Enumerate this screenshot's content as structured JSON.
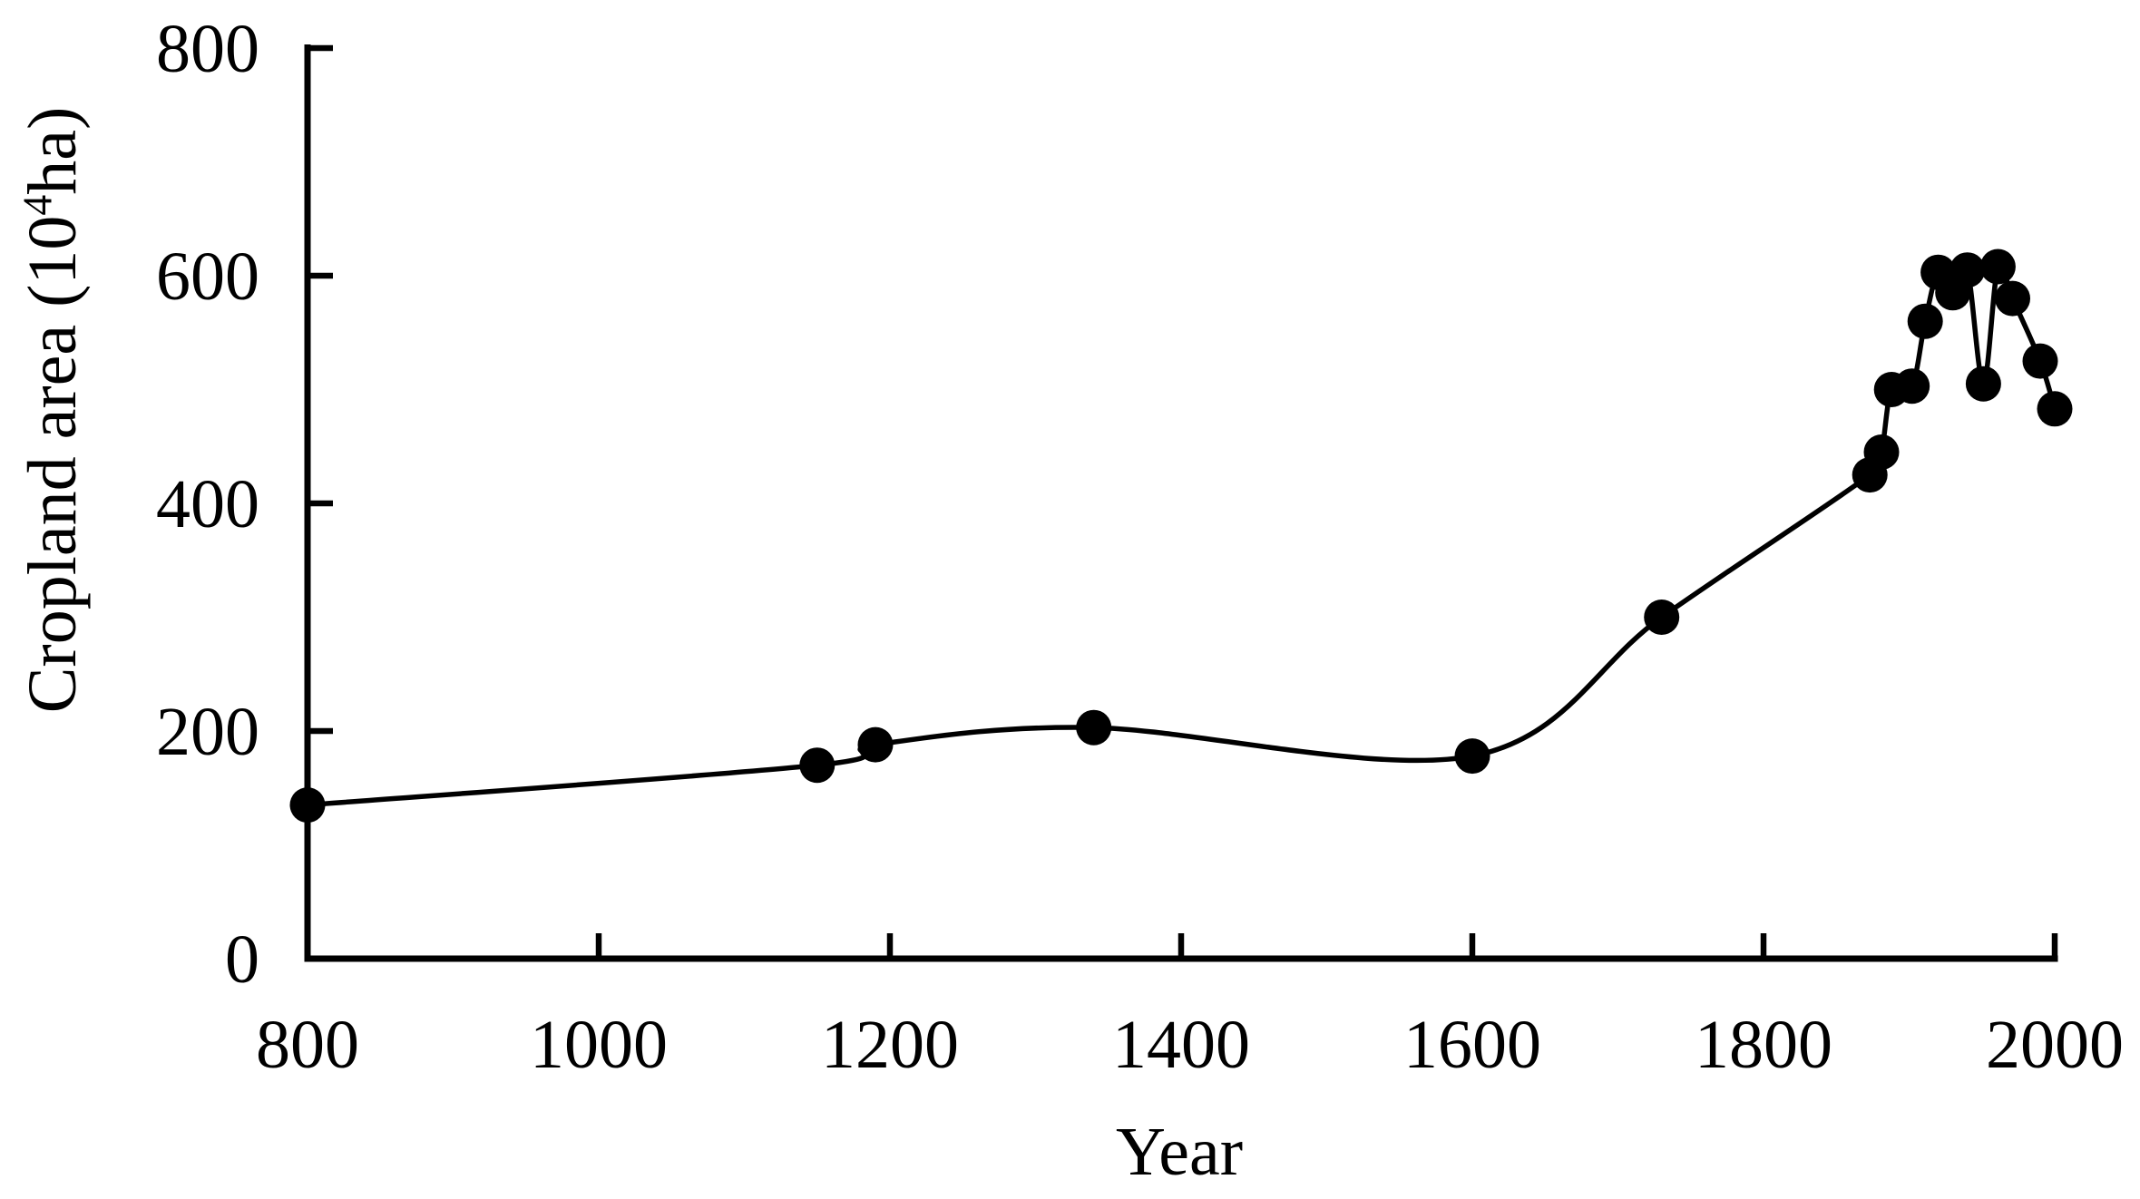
{
  "chart_data": {
    "type": "line",
    "title": "",
    "xlabel": "Year",
    "ylabel": "Cropland area (10⁴ha)",
    "ylabel_parts": {
      "prefix": "Cropland area (10",
      "superscript": "4",
      "suffix": "ha)"
    },
    "xlim": [
      800,
      2000
    ],
    "ylim": [
      0,
      800
    ],
    "x_ticks": [
      800,
      1000,
      1200,
      1400,
      1600,
      1800,
      2000
    ],
    "y_ticks": [
      0,
      200,
      400,
      600,
      800
    ],
    "grid": false,
    "legend": null,
    "line_style": "smooth",
    "marker": "filled-circle",
    "line_color": "#000000",
    "marker_color": "#000000",
    "background_color": "#ffffff",
    "series": [
      {
        "name": "Cropland area",
        "points": [
          {
            "year": 800,
            "value": 135
          },
          {
            "year": 1150,
            "value": 170
          },
          {
            "year": 1190,
            "value": 188
          },
          {
            "year": 1340,
            "value": 203
          },
          {
            "year": 1600,
            "value": 178
          },
          {
            "year": 1730,
            "value": 300
          },
          {
            "year": 1873,
            "value": 425
          },
          {
            "year": 1881,
            "value": 445
          },
          {
            "year": 1888,
            "value": 500
          },
          {
            "year": 1902,
            "value": 503
          },
          {
            "year": 1911,
            "value": 560
          },
          {
            "year": 1920,
            "value": 603
          },
          {
            "year": 1930,
            "value": 585
          },
          {
            "year": 1940,
            "value": 605
          },
          {
            "year": 1951,
            "value": 505
          },
          {
            "year": 1961,
            "value": 608
          },
          {
            "year": 1971,
            "value": 580
          },
          {
            "year": 1990,
            "value": 525
          },
          {
            "year": 2000,
            "value": 483
          }
        ]
      }
    ]
  }
}
